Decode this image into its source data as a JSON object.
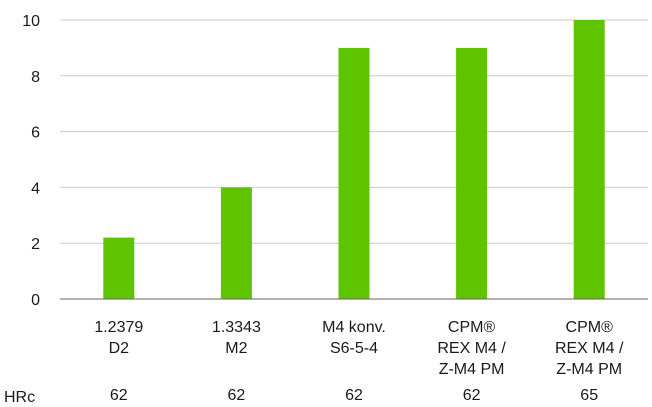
{
  "chart_data": {
    "type": "bar",
    "categories": [
      [
        "1.2379",
        "D2"
      ],
      [
        "1.3343",
        "M2"
      ],
      [
        "M4 konv.",
        "S6-5-4"
      ],
      [
        "CPM®",
        "REX M4 /",
        "Z-M4 PM"
      ],
      [
        "CPM®",
        "REX M4 /",
        "Z-M4 PM"
      ]
    ],
    "values": [
      2.2,
      4,
      9,
      9,
      10
    ],
    "ylim": [
      0,
      10
    ],
    "yticks": [
      0,
      2,
      4,
      6,
      8,
      10
    ],
    "grid": true,
    "bar_color": "#5ec400",
    "grid_color": "#cccccc",
    "axis_color": "#666666",
    "hardness": {
      "label": "HRc",
      "values": [
        "62",
        "62",
        "62",
        "62",
        "65"
      ]
    }
  }
}
